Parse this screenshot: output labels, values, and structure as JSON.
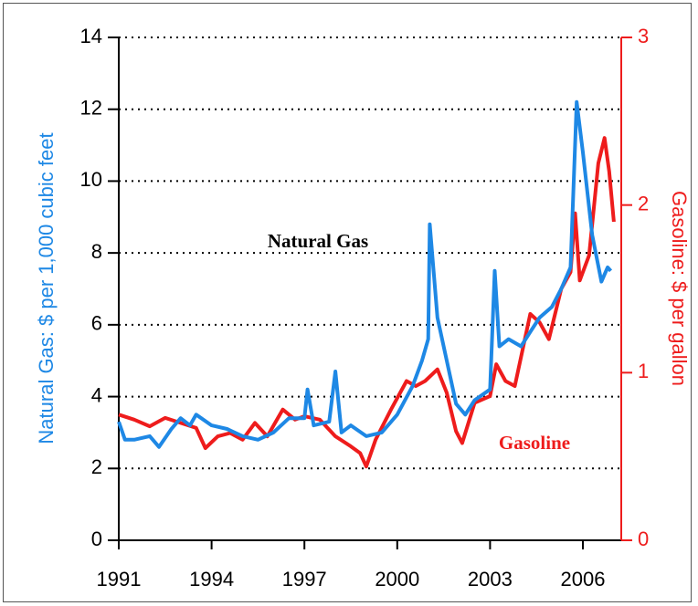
{
  "chart_data": {
    "type": "line",
    "y_label": "Natural Gas: $ per 1,000 cubic feet",
    "y2_label": "Gasoline: $ per gallon",
    "annotations": [
      "Natural Gas",
      "Gasoline"
    ],
    "xlim": [
      1991,
      2007.24
    ],
    "xticks": [
      1991,
      1994,
      1997,
      2000,
      2003,
      2006
    ],
    "ylim": [
      0,
      14
    ],
    "yticks": [
      0,
      2,
      4,
      6,
      8,
      10,
      12,
      14
    ],
    "y2lim": [
      0,
      3
    ],
    "y2ticks": [
      0,
      1,
      2,
      3
    ],
    "grid": true,
    "series": [
      {
        "name": "Natural Gas",
        "color": "#1e88e5",
        "axis": "y",
        "x": [
          1991.0,
          1991.2,
          1991.5,
          1992.0,
          1992.3,
          1992.7,
          1993.0,
          1993.3,
          1993.5,
          1994.0,
          1994.5,
          1995.0,
          1995.5,
          1996.0,
          1996.5,
          1997.0,
          1997.1,
          1997.3,
          1997.8,
          1998.0,
          1998.2,
          1998.5,
          1999.0,
          1999.5,
          2000.0,
          2000.5,
          2000.8,
          2001.0,
          2001.05,
          2001.3,
          2001.6,
          2001.9,
          2002.2,
          2002.5,
          2003.0,
          2003.15,
          2003.3,
          2003.6,
          2004.0,
          2004.3,
          2004.6,
          2005.0,
          2005.3,
          2005.6,
          2005.8,
          2006.0,
          2006.3,
          2006.6,
          2006.8,
          2006.9
        ],
        "values": [
          3.3,
          2.8,
          2.8,
          2.9,
          2.6,
          3.1,
          3.4,
          3.2,
          3.5,
          3.2,
          3.1,
          2.9,
          2.8,
          3.0,
          3.4,
          3.4,
          4.2,
          3.2,
          3.3,
          4.7,
          3.0,
          3.2,
          2.9,
          3.0,
          3.5,
          4.3,
          5.0,
          5.6,
          8.8,
          6.2,
          5.0,
          3.8,
          3.5,
          3.9,
          4.2,
          7.5,
          5.4,
          5.6,
          5.4,
          5.8,
          6.2,
          6.5,
          7.0,
          7.6,
          12.2,
          10.8,
          8.5,
          7.2,
          7.6,
          7.5
        ]
      },
      {
        "name": "Gasoline",
        "color": "#ee1c1c",
        "axis": "y2",
        "x": [
          1991.0,
          1991.5,
          1992.0,
          1992.5,
          1993.0,
          1993.5,
          1993.8,
          1994.2,
          1994.6,
          1995.0,
          1995.4,
          1995.8,
          1996.3,
          1996.7,
          1997.0,
          1997.5,
          1998.0,
          1998.5,
          1998.8,
          1999.0,
          1999.3,
          1999.8,
          2000.3,
          2000.6,
          2000.9,
          2001.3,
          2001.6,
          2001.9,
          2002.1,
          2002.5,
          2003.0,
          2003.2,
          2003.5,
          2003.8,
          2004.3,
          2004.6,
          2004.9,
          2005.3,
          2005.6,
          2005.75,
          2005.9,
          2006.2,
          2006.5,
          2006.7,
          2006.85,
          2007.0
        ],
        "values": [
          0.75,
          0.72,
          0.68,
          0.73,
          0.7,
          0.67,
          0.55,
          0.62,
          0.64,
          0.6,
          0.7,
          0.62,
          0.78,
          0.72,
          0.74,
          0.72,
          0.62,
          0.56,
          0.52,
          0.44,
          0.6,
          0.78,
          0.95,
          0.92,
          0.95,
          1.02,
          0.88,
          0.65,
          0.58,
          0.82,
          0.86,
          1.05,
          0.95,
          0.92,
          1.35,
          1.3,
          1.2,
          1.5,
          1.6,
          1.95,
          1.55,
          1.7,
          2.25,
          2.4,
          2.2,
          1.9
        ]
      }
    ]
  }
}
